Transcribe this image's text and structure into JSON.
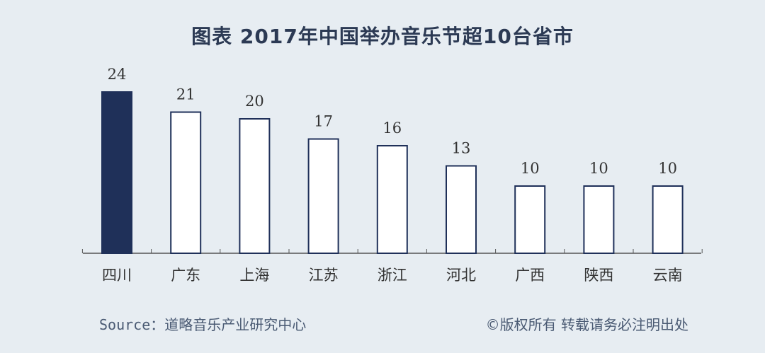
{
  "chart_data": {
    "type": "bar",
    "title": "图表  2017年中国举办音乐节超10台省市",
    "categories": [
      "四川",
      "广东",
      "上海",
      "江苏",
      "浙江",
      "河北",
      "广西",
      "陕西",
      "云南"
    ],
    "values": [
      24,
      21,
      20,
      17,
      16,
      13,
      10,
      10,
      10
    ],
    "ylim": [
      0,
      24
    ],
    "grid": false,
    "highlight_index": 0,
    "colors": {
      "highlight_fill": "#1f3059",
      "bar_fill": "#ffffff",
      "bar_stroke": "#1f3059",
      "axis": "#555555",
      "text": "#333333"
    }
  },
  "footer": {
    "source": "Source：道略音乐产业研究中心",
    "copyright": "©版权所有  转载请务必注明出处"
  }
}
